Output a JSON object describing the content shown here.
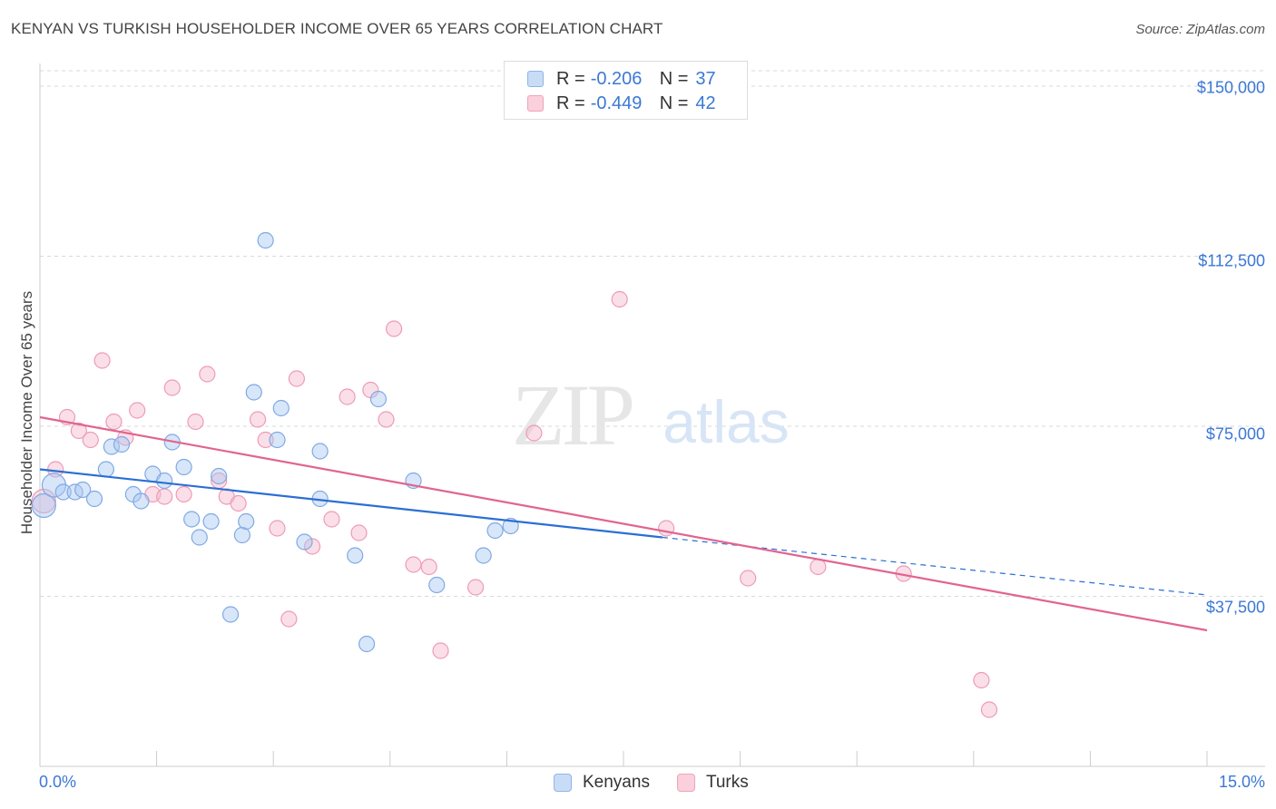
{
  "header": {
    "title": "KENYAN VS TURKISH HOUSEHOLDER INCOME OVER 65 YEARS CORRELATION CHART",
    "source": "Source: ZipAtlas.com"
  },
  "watermark": {
    "zip": "ZIP",
    "atlas": "atlas"
  },
  "legend": {
    "r_label": "R =",
    "n_label": "N =",
    "rows": [
      {
        "r": "-0.206",
        "n": "37",
        "color": "#a9c8f2"
      },
      {
        "r": "-0.449",
        "n": "42",
        "color": "#f5b8cb"
      }
    ]
  },
  "bottom_legend": {
    "kenyans": "Kenyans",
    "turks": "Turks"
  },
  "axes": {
    "ylabel": "Householder Income Over 65 years",
    "xmin_label": "0.0%",
    "xmax_label": "15.0%",
    "yticks": [
      "$150,000",
      "$112,500",
      "$75,000",
      "$37,500"
    ]
  },
  "chart_data": {
    "type": "scatter",
    "title": "KENYAN VS TURKISH HOUSEHOLDER INCOME OVER 65 YEARS CORRELATION CHART",
    "xlabel": "",
    "ylabel": "Householder Income Over 65 years",
    "xlim": [
      0,
      15
    ],
    "ylim": [
      0,
      155000
    ],
    "yticks": [
      37500,
      75000,
      112500,
      150000
    ],
    "grid": true,
    "legend_position": "top-center",
    "series": [
      {
        "name": "Kenyans",
        "color": "#a9c8f2",
        "line_color": "#2a6fd4",
        "r": -0.206,
        "n": 37,
        "trend": {
          "x0": 0.0,
          "y0": 65500,
          "x1": 8.0,
          "y1": 50500,
          "dashed_to_x": 15.0,
          "dashed_to_y": 37800
        },
        "points": [
          [
            0.05,
            57500
          ],
          [
            0.18,
            62000
          ],
          [
            0.3,
            60500
          ],
          [
            0.45,
            60500
          ],
          [
            0.55,
            61000
          ],
          [
            0.7,
            59000
          ],
          [
            0.85,
            65500
          ],
          [
            0.92,
            70500
          ],
          [
            1.05,
            71000
          ],
          [
            1.2,
            60000
          ],
          [
            1.3,
            58500
          ],
          [
            1.45,
            64500
          ],
          [
            1.6,
            63000
          ],
          [
            1.7,
            71500
          ],
          [
            1.85,
            66000
          ],
          [
            1.95,
            54500
          ],
          [
            2.05,
            50500
          ],
          [
            2.2,
            54000
          ],
          [
            2.3,
            64000
          ],
          [
            2.45,
            33500
          ],
          [
            2.6,
            51000
          ],
          [
            2.65,
            54000
          ],
          [
            2.75,
            82500
          ],
          [
            2.9,
            116000
          ],
          [
            3.05,
            72000
          ],
          [
            3.1,
            79000
          ],
          [
            3.4,
            49500
          ],
          [
            3.6,
            69500
          ],
          [
            3.6,
            59000
          ],
          [
            4.05,
            46500
          ],
          [
            4.2,
            27000
          ],
          [
            4.35,
            81000
          ],
          [
            4.8,
            63000
          ],
          [
            5.1,
            40000
          ],
          [
            5.7,
            46500
          ],
          [
            5.85,
            52000
          ],
          [
            6.05,
            53000
          ]
        ]
      },
      {
        "name": "Turks",
        "color": "#f5b8cb",
        "line_color": "#e2648e",
        "r": -0.449,
        "n": 42,
        "trend": {
          "x0": 0.0,
          "y0": 77000,
          "x1": 15.0,
          "y1": 30000
        },
        "points": [
          [
            0.05,
            58500
          ],
          [
            0.2,
            65500
          ],
          [
            0.35,
            77000
          ],
          [
            0.5,
            74000
          ],
          [
            0.65,
            72000
          ],
          [
            0.8,
            89500
          ],
          [
            0.95,
            76000
          ],
          [
            1.1,
            72500
          ],
          [
            1.25,
            78500
          ],
          [
            1.45,
            60000
          ],
          [
            1.6,
            59500
          ],
          [
            1.7,
            83500
          ],
          [
            1.85,
            60000
          ],
          [
            2.0,
            76000
          ],
          [
            2.15,
            86500
          ],
          [
            2.3,
            63000
          ],
          [
            2.4,
            59500
          ],
          [
            2.55,
            58000
          ],
          [
            2.8,
            76500
          ],
          [
            2.9,
            72000
          ],
          [
            3.05,
            52500
          ],
          [
            3.2,
            32500
          ],
          [
            3.3,
            85500
          ],
          [
            3.5,
            48500
          ],
          [
            3.75,
            54500
          ],
          [
            3.95,
            81500
          ],
          [
            4.1,
            51500
          ],
          [
            4.25,
            83000
          ],
          [
            4.45,
            76500
          ],
          [
            4.55,
            96500
          ],
          [
            4.8,
            44500
          ],
          [
            5.0,
            44000
          ],
          [
            5.15,
            25500
          ],
          [
            5.6,
            39500
          ],
          [
            6.35,
            73500
          ],
          [
            7.45,
            103000
          ],
          [
            8.05,
            52500
          ],
          [
            9.1,
            41500
          ],
          [
            10.0,
            44000
          ],
          [
            11.1,
            42500
          ],
          [
            12.1,
            19000
          ],
          [
            12.2,
            12500
          ]
        ]
      }
    ]
  }
}
